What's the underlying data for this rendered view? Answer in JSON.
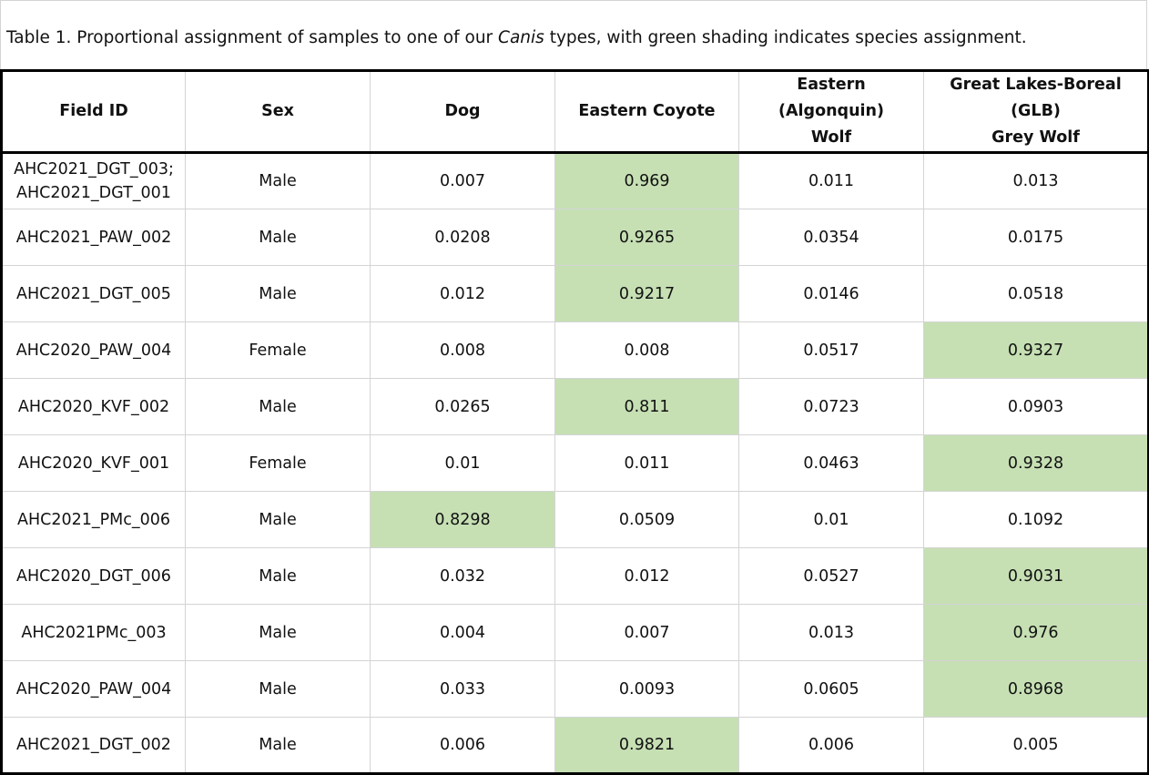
{
  "caption": {
    "before": "Table 1. Proportional assignment of samples to one of our ",
    "italic": "Canis",
    "after": " types, with green shading indicates species assignment."
  },
  "table": {
    "headers": {
      "field_id": "Field ID",
      "sex": "Sex",
      "dog": "Dog",
      "eastern_coyote": "Eastern Coyote",
      "eastern_wolf_line1": "Eastern (Algonquin)",
      "eastern_wolf_line2": "Wolf",
      "glb_line1": "Great Lakes-Boreal (GLB)",
      "glb_line2": "Grey Wolf"
    },
    "assignment_color": "#c6e0b4",
    "rows": [
      {
        "field_id": [
          "AHC2021_DGT_003;",
          "AHC2021_DGT_001"
        ],
        "sex": "Male",
        "dog": "0.007",
        "eastern_coyote": "0.969",
        "eastern_wolf": "0.011",
        "glb_grey_wolf": "0.013",
        "assigned": "eastern_coyote"
      },
      {
        "field_id": [
          "AHC2021_PAW_002"
        ],
        "sex": "Male",
        "dog": "0.0208",
        "eastern_coyote": "0.9265",
        "eastern_wolf": "0.0354",
        "glb_grey_wolf": "0.0175",
        "assigned": "eastern_coyote"
      },
      {
        "field_id": [
          "AHC2021_DGT_005"
        ],
        "sex": "Male",
        "dog": "0.012",
        "eastern_coyote": "0.9217",
        "eastern_wolf": "0.0146",
        "glb_grey_wolf": "0.0518",
        "assigned": "eastern_coyote"
      },
      {
        "field_id": [
          "AHC2020_PAW_004"
        ],
        "sex": "Female",
        "dog": "0.008",
        "eastern_coyote": "0.008",
        "eastern_wolf": "0.0517",
        "glb_grey_wolf": "0.9327",
        "assigned": "glb_grey_wolf"
      },
      {
        "field_id": [
          "AHC2020_KVF_002"
        ],
        "sex": "Male",
        "dog": "0.0265",
        "eastern_coyote": "0.811",
        "eastern_wolf": "0.0723",
        "glb_grey_wolf": "0.0903",
        "assigned": "eastern_coyote"
      },
      {
        "field_id": [
          "AHC2020_KVF_001"
        ],
        "sex": "Female",
        "dog": "0.01",
        "eastern_coyote": "0.011",
        "eastern_wolf": "0.0463",
        "glb_grey_wolf": "0.9328",
        "assigned": "glb_grey_wolf"
      },
      {
        "field_id": [
          "AHC2021_PMc_006"
        ],
        "sex": "Male",
        "dog": "0.8298",
        "eastern_coyote": "0.0509",
        "eastern_wolf": "0.01",
        "glb_grey_wolf": "0.1092",
        "assigned": "dog"
      },
      {
        "field_id": [
          "AHC2020_DGT_006"
        ],
        "sex": "Male",
        "dog": "0.032",
        "eastern_coyote": "0.012",
        "eastern_wolf": "0.0527",
        "glb_grey_wolf": "0.9031",
        "assigned": "glb_grey_wolf"
      },
      {
        "field_id": [
          "AHC2021PMc_003"
        ],
        "sex": "Male",
        "dog": "0.004",
        "eastern_coyote": "0.007",
        "eastern_wolf": "0.013",
        "glb_grey_wolf": "0.976",
        "assigned": "glb_grey_wolf"
      },
      {
        "field_id": [
          "AHC2020_PAW_004"
        ],
        "sex": "Male",
        "dog": "0.033",
        "eastern_coyote": "0.0093",
        "eastern_wolf": "0.0605",
        "glb_grey_wolf": "0.8968",
        "assigned": "glb_grey_wolf"
      },
      {
        "field_id": [
          "AHC2021_DGT_002"
        ],
        "sex": "Male",
        "dog": "0.006",
        "eastern_coyote": "0.9821",
        "eastern_wolf": "0.006",
        "glb_grey_wolf": "0.005",
        "assigned": "eastern_coyote"
      }
    ]
  }
}
